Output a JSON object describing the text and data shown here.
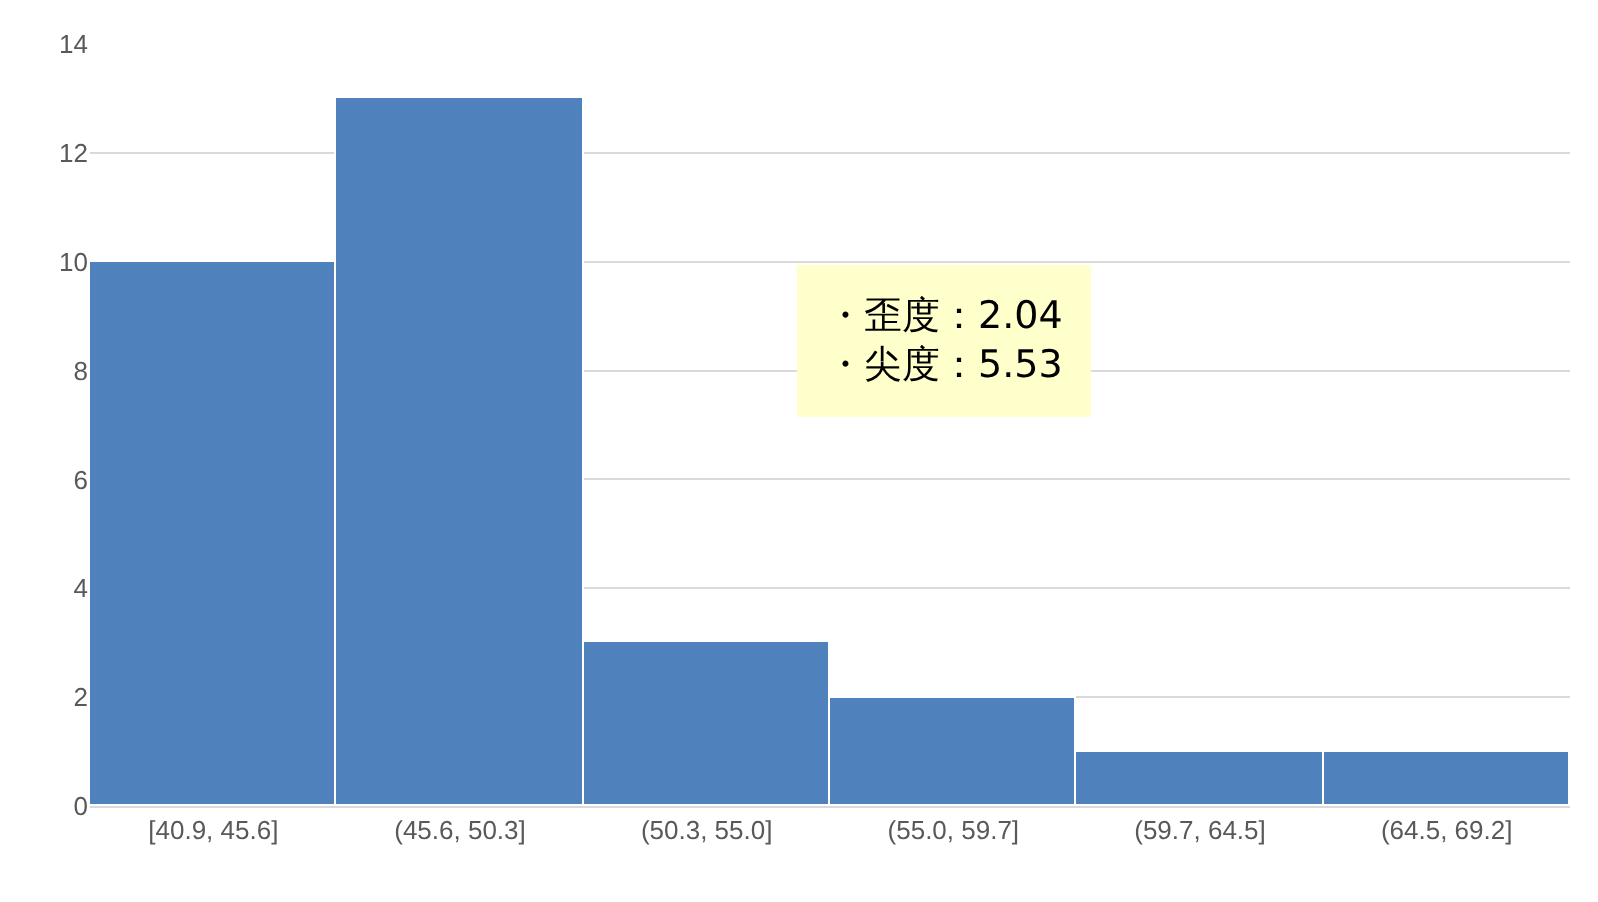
{
  "chart_data": {
    "type": "bar",
    "categories": [
      "[40.9, 45.6]",
      "(45.6, 50.3]",
      "(50.3, 55.0]",
      "(55.0, 59.7]",
      "(59.7, 64.5]",
      "(64.5, 69.2]"
    ],
    "values": [
      10,
      13,
      3,
      2,
      1,
      1
    ],
    "color": "#4f81bd",
    "ylim": [
      0,
      14
    ],
    "yticks": [
      0,
      2,
      4,
      6,
      8,
      10,
      12,
      14
    ],
    "grid": "y",
    "legend": false,
    "annotations": [
      "・歪度：2.04",
      "・尖度：5.53"
    ]
  }
}
